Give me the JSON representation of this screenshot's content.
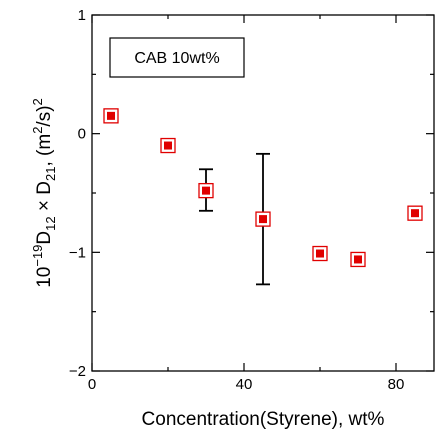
{
  "chart_data": {
    "type": "scatter",
    "xlabel": "Concentration(Styrene), wt%",
    "ylabel": {
      "base": "10",
      "exp": "−19",
      "d1": "D",
      "sub1": "12",
      "times": " × ",
      "d2": "D",
      "sub2": "21",
      "unit": ", (m",
      "unit_exp": "2",
      "unit_end": "/s)",
      "unit_exp2": "2"
    },
    "xlim": [
      0,
      90
    ],
    "ylim": [
      -2,
      1
    ],
    "x_ticks": [
      {
        "value": 0,
        "label": "0"
      },
      {
        "value": 40,
        "label": "40"
      },
      {
        "value": 80,
        "label": "80"
      }
    ],
    "x_minor_ticks": [
      20,
      60
    ],
    "y_ticks": [
      {
        "value": 1,
        "label": "1"
      },
      {
        "value": 0,
        "label": "0"
      },
      {
        "value": -1,
        "label": "−1"
      },
      {
        "value": -2,
        "label": "−2"
      }
    ],
    "y_minor_ticks": [
      0.5,
      -0.5,
      -1.5
    ],
    "grid": false,
    "legend": {
      "text": "CAB 10wt%",
      "placement": "top-left"
    },
    "series": [
      {
        "marker": "filled-square-in-open-square",
        "color": "#e00000",
        "points": [
          {
            "x": 5,
            "y": 0.15
          },
          {
            "x": 20,
            "y": -0.1
          },
          {
            "x": 30,
            "y": -0.48,
            "err_low": -0.65,
            "err_high": -0.3
          },
          {
            "x": 45,
            "y": -0.72,
            "err_low": -1.27,
            "err_high": -0.17
          },
          {
            "x": 60,
            "y": -1.01
          },
          {
            "x": 70,
            "y": -1.06
          },
          {
            "x": 85,
            "y": -0.67
          }
        ]
      }
    ]
  }
}
